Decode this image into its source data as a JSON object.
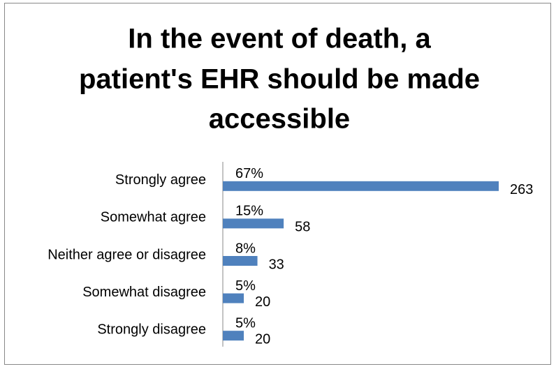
{
  "chart_data": {
    "type": "hbar",
    "title": [
      "In the event of death, a",
      "patient's EHR should be made",
      "accessible"
    ],
    "categories": [
      "Strongly agree",
      "Somewhat agree",
      "Neither agree or disagree",
      "Somewhat disagree",
      "Strongly disagree"
    ],
    "values": [
      263,
      58,
      33,
      20,
      20
    ],
    "percent_labels": [
      "67%",
      "15%",
      "8%",
      "5%",
      "5%"
    ],
    "color": "#4f81bd",
    "xlim": [
      0,
      263
    ]
  }
}
